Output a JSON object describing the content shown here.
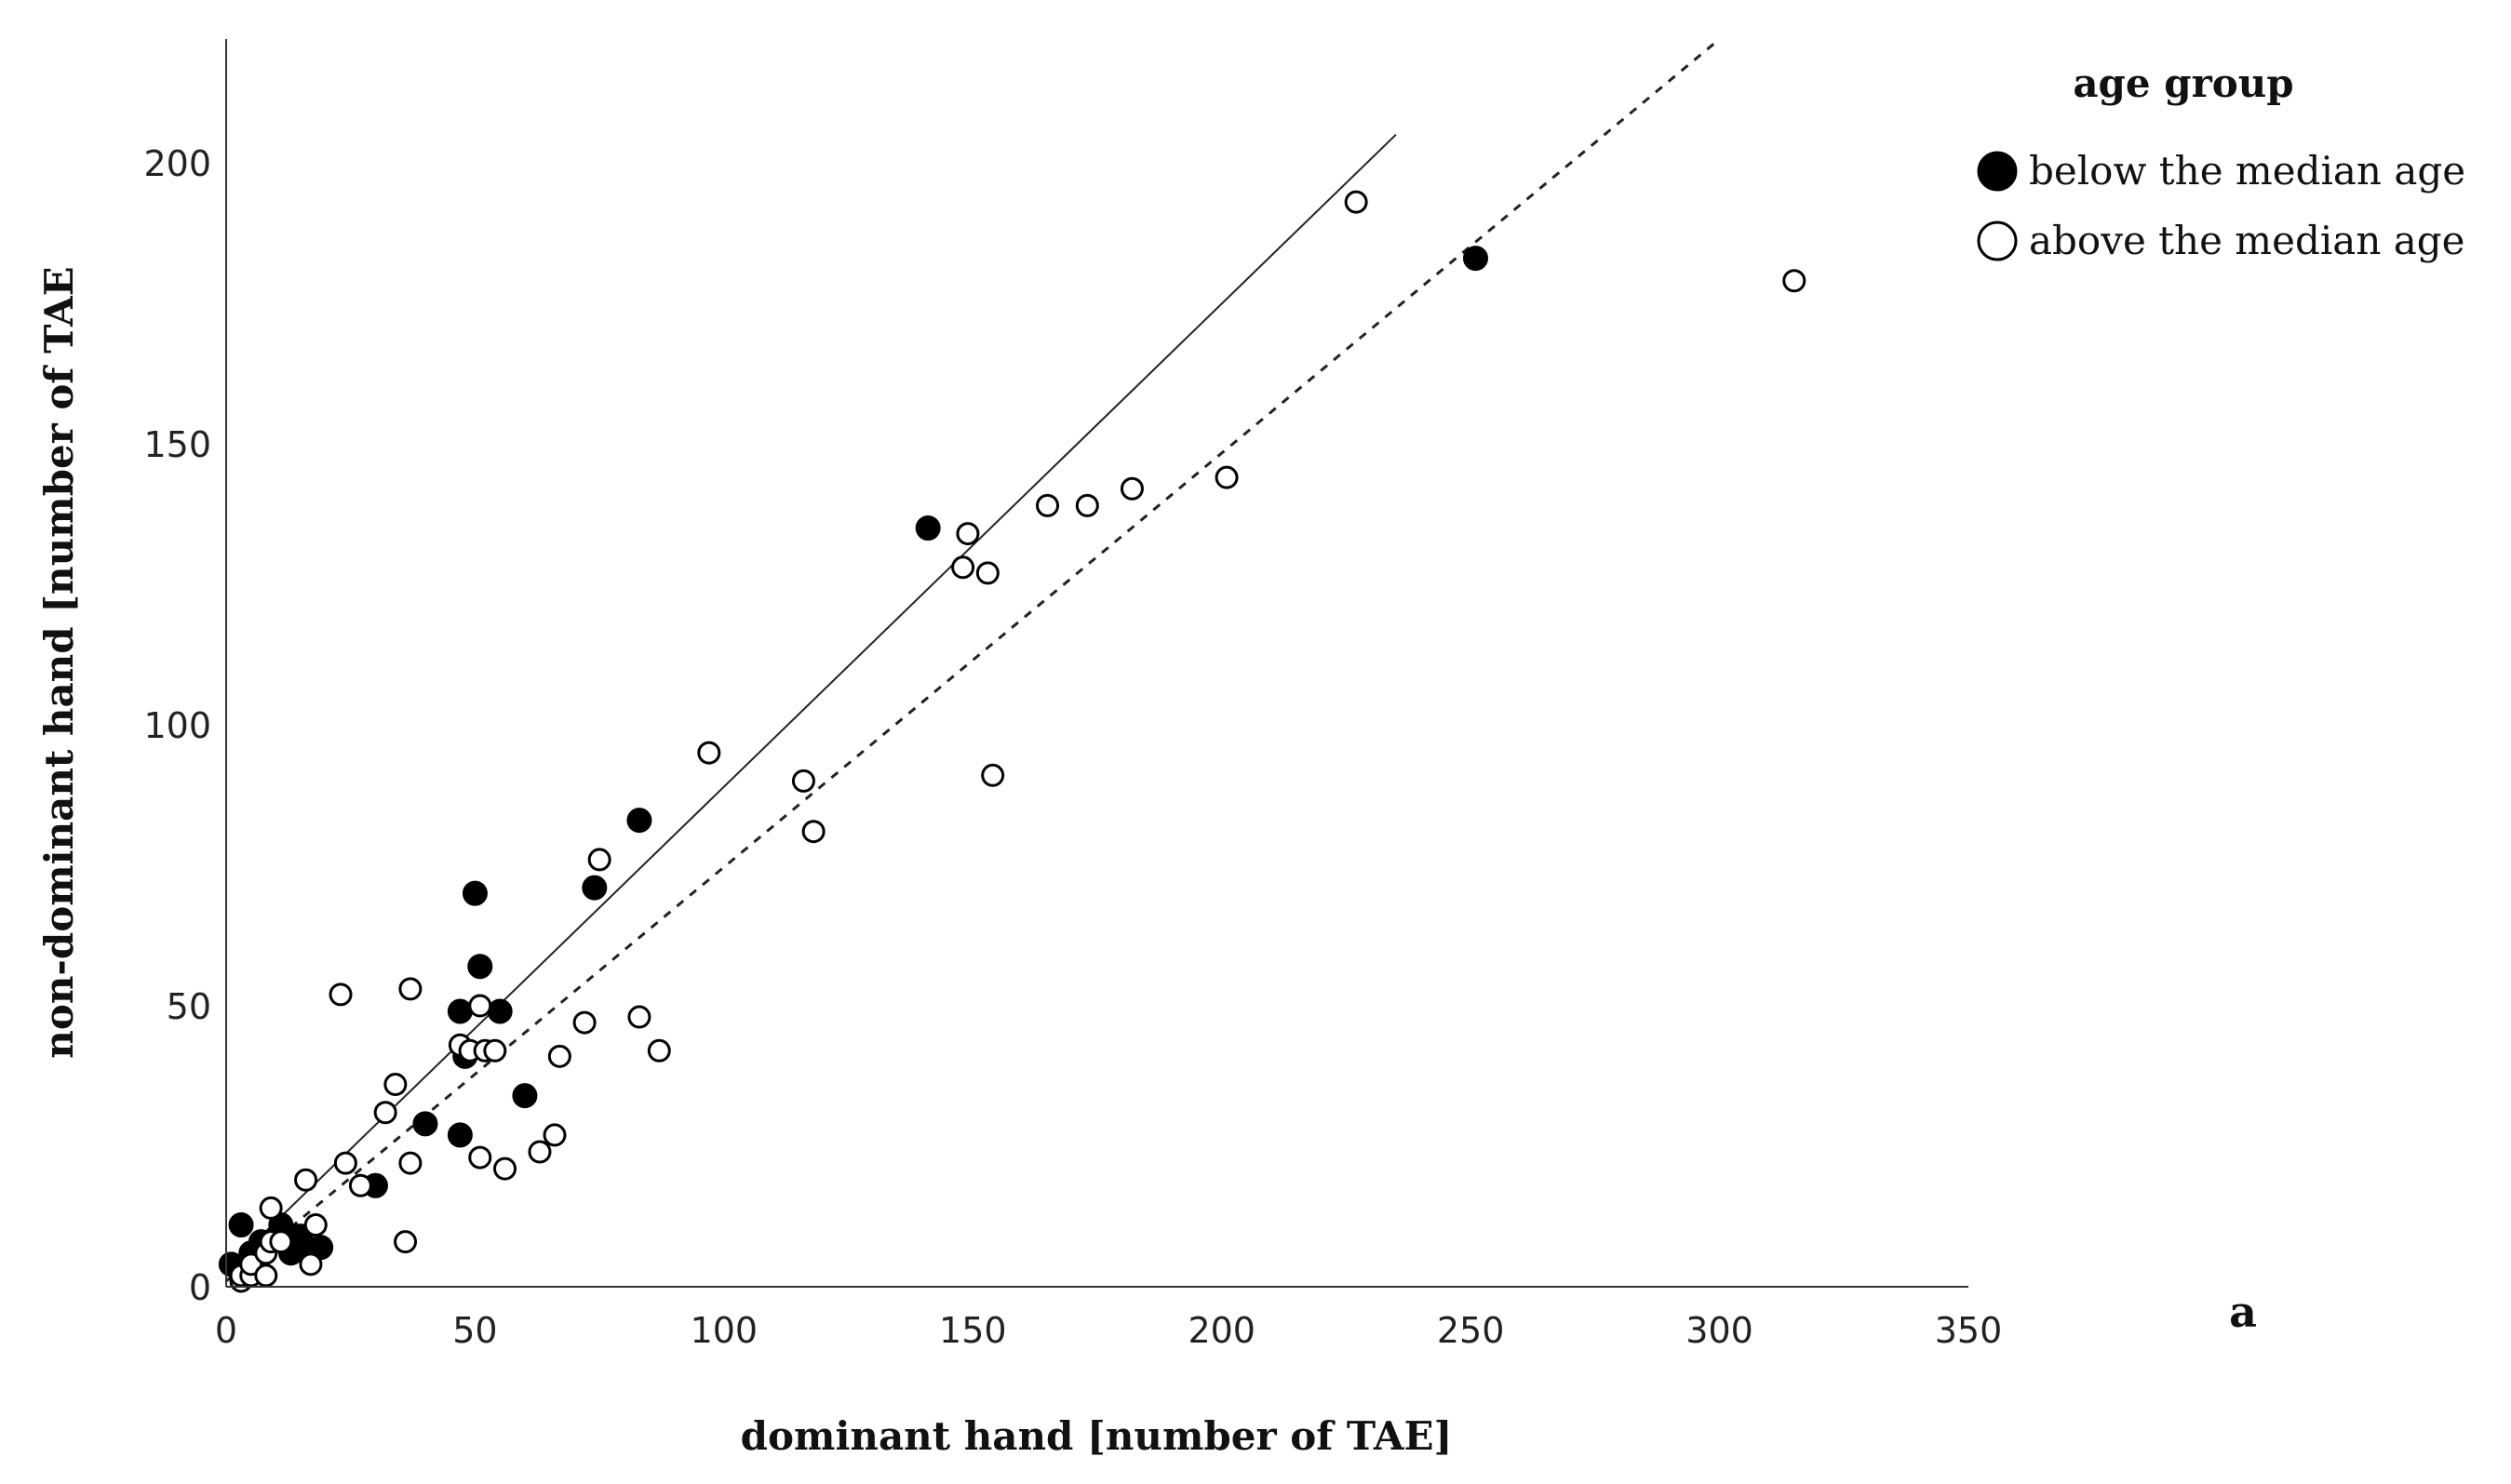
{
  "chart_data": {
    "type": "scatter",
    "xlabel": "dominant hand [number of TAE]",
    "ylabel": "non-dominant hand [number of TAE",
    "xlim": [
      0,
      350
    ],
    "ylim": [
      0,
      222
    ],
    "x_ticks": [
      0,
      50,
      100,
      150,
      200,
      250,
      300,
      350
    ],
    "y_ticks": [
      0,
      50,
      100,
      150,
      200
    ],
    "grid": false,
    "legend": {
      "title": "age group",
      "placement": "top-right",
      "entries": [
        "below the median age",
        "above the median age"
      ]
    },
    "panel_label": "a",
    "series": [
      {
        "name": "below the median age",
        "marker": "filled-circle",
        "color": "#000000",
        "points": [
          [
            1,
            4
          ],
          [
            3,
            3
          ],
          [
            3,
            11
          ],
          [
            5,
            6
          ],
          [
            7,
            8
          ],
          [
            9,
            8
          ],
          [
            11,
            11
          ],
          [
            13,
            6
          ],
          [
            14,
            9
          ],
          [
            15,
            9
          ],
          [
            16,
            7
          ],
          [
            17,
            6
          ],
          [
            19,
            7
          ],
          [
            30,
            18
          ],
          [
            40,
            29
          ],
          [
            47,
            49
          ],
          [
            47,
            27
          ],
          [
            48,
            41
          ],
          [
            50,
            70
          ],
          [
            51,
            57
          ],
          [
            55,
            49
          ],
          [
            60,
            34
          ],
          [
            74,
            71
          ],
          [
            83,
            83
          ],
          [
            141,
            135
          ],
          [
            251,
            183
          ]
        ],
        "fit_line": {
          "style": "solid",
          "x": [
            0,
            235
          ],
          "y": [
            3,
            205
          ]
        }
      },
      {
        "name": "above the median age",
        "marker": "open-circle",
        "color": "#000000",
        "points": [
          [
            3,
            1
          ],
          [
            3,
            2
          ],
          [
            5,
            2
          ],
          [
            5,
            4
          ],
          [
            8,
            2
          ],
          [
            8,
            6
          ],
          [
            9,
            8
          ],
          [
            9,
            14
          ],
          [
            11,
            8
          ],
          [
            16,
            19
          ],
          [
            17,
            4
          ],
          [
            18,
            11
          ],
          [
            23,
            52
          ],
          [
            24,
            22
          ],
          [
            27,
            18
          ],
          [
            32,
            31
          ],
          [
            34,
            36
          ],
          [
            36,
            8
          ],
          [
            37,
            22
          ],
          [
            37,
            53
          ],
          [
            47,
            43
          ],
          [
            49,
            42
          ],
          [
            51,
            23
          ],
          [
            51,
            50
          ],
          [
            52,
            42
          ],
          [
            54,
            42
          ],
          [
            56,
            21
          ],
          [
            63,
            24
          ],
          [
            66,
            27
          ],
          [
            67,
            41
          ],
          [
            72,
            47
          ],
          [
            75,
            76
          ],
          [
            83,
            48
          ],
          [
            87,
            42
          ],
          [
            97,
            95
          ],
          [
            116,
            90
          ],
          [
            118,
            81
          ],
          [
            148,
            128
          ],
          [
            149,
            134
          ],
          [
            153,
            127
          ],
          [
            154,
            91
          ],
          [
            165,
            139
          ],
          [
            173,
            139
          ],
          [
            182,
            142
          ],
          [
            201,
            144
          ],
          [
            227,
            193
          ],
          [
            315,
            179
          ]
        ],
        "fit_line": {
          "style": "dashed",
          "x": [
            0,
            300
          ],
          "y": [
            1,
            222
          ]
        }
      }
    ]
  }
}
